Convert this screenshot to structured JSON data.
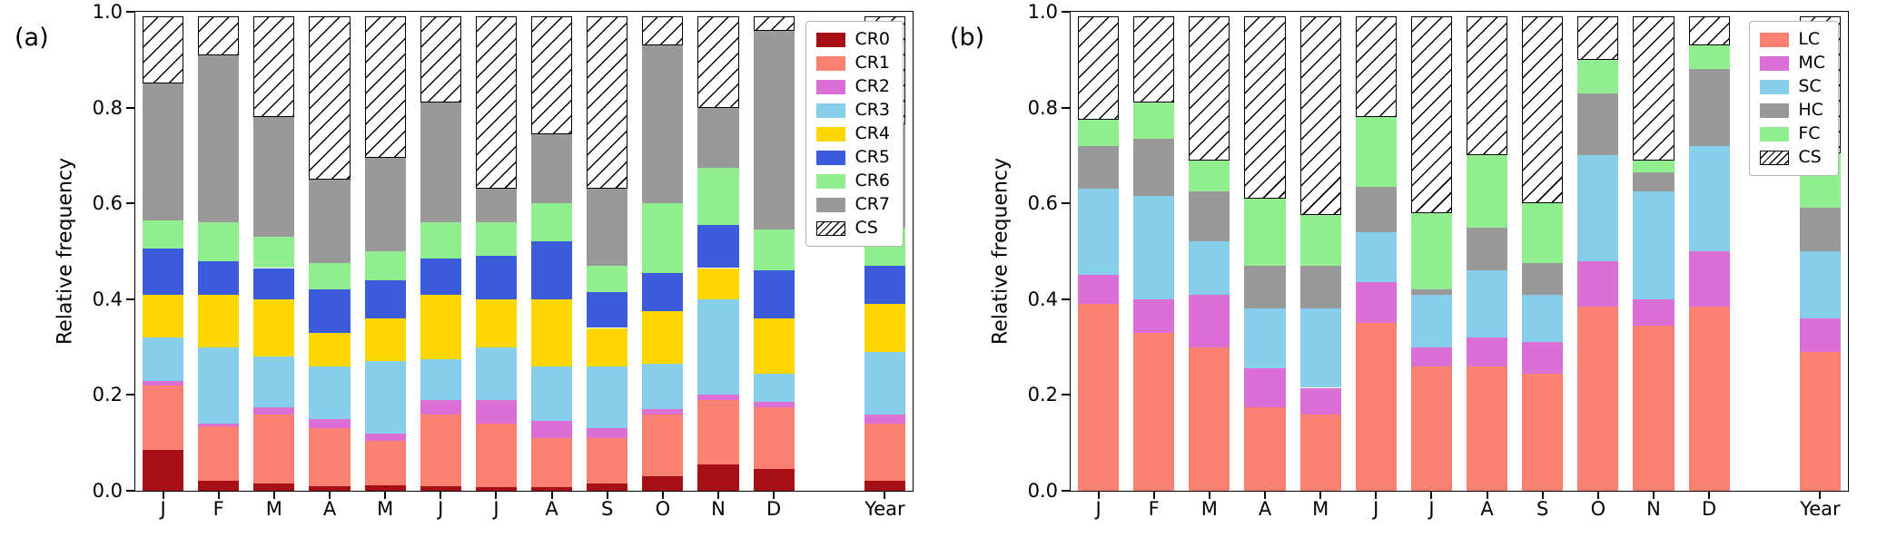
{
  "panels": [
    {
      "label": "(a)"
    },
    {
      "label": "(b)"
    }
  ],
  "chart_data": [
    {
      "type": "bar",
      "stacked": true,
      "title": "",
      "xlabel": "",
      "ylabel": "Relative frequency",
      "ylim": [
        0,
        1.0
      ],
      "yticks": [
        "0.0",
        "0.2",
        "0.4",
        "0.6",
        "0.8",
        "1.0"
      ],
      "grid": false,
      "legend_position": "upper right",
      "categories": [
        "J",
        "F",
        "M",
        "A",
        "M",
        "J",
        "J",
        "A",
        "S",
        "O",
        "N",
        "D",
        "Year"
      ],
      "positions": [
        0,
        1,
        2,
        3,
        4,
        5,
        6,
        7,
        8,
        9,
        10,
        11,
        13
      ],
      "series": [
        {
          "name": "CR0",
          "color": "#a50f15",
          "values": [
            0.085,
            0.02,
            0.015,
            0.01,
            0.012,
            0.01,
            0.008,
            0.008,
            0.015,
            0.03,
            0.055,
            0.045,
            0.02
          ]
        },
        {
          "name": "CR1",
          "color": "#fa8072",
          "values": [
            0.135,
            0.115,
            0.145,
            0.12,
            0.093,
            0.15,
            0.132,
            0.102,
            0.095,
            0.13,
            0.135,
            0.13,
            0.12
          ]
        },
        {
          "name": "CR2",
          "color": "#da70d6",
          "values": [
            0.01,
            0.005,
            0.015,
            0.02,
            0.015,
            0.03,
            0.05,
            0.035,
            0.02,
            0.01,
            0.01,
            0.01,
            0.02
          ]
        },
        {
          "name": "CR3",
          "color": "#87ceeb",
          "values": [
            0.09,
            0.16,
            0.105,
            0.11,
            0.15,
            0.085,
            0.11,
            0.115,
            0.13,
            0.095,
            0.2,
            0.06,
            0.13
          ]
        },
        {
          "name": "CR4",
          "color": "#ffd700",
          "values": [
            0.09,
            0.11,
            0.12,
            0.07,
            0.09,
            0.135,
            0.1,
            0.14,
            0.08,
            0.11,
            0.065,
            0.115,
            0.1
          ]
        },
        {
          "name": "CR5",
          "color": "#3b5bdb",
          "values": [
            0.095,
            0.07,
            0.065,
            0.09,
            0.08,
            0.075,
            0.09,
            0.12,
            0.075,
            0.08,
            0.09,
            0.1,
            0.08
          ]
        },
        {
          "name": "CR6",
          "color": "#90ee90",
          "values": [
            0.06,
            0.08,
            0.065,
            0.055,
            0.06,
            0.075,
            0.07,
            0.08,
            0.055,
            0.145,
            0.12,
            0.085,
            0.08
          ]
        },
        {
          "name": "CR7",
          "color": "#999999",
          "values": [
            0.285,
            0.35,
            0.25,
            0.175,
            0.195,
            0.25,
            0.07,
            0.145,
            0.16,
            0.33,
            0.125,
            0.415,
            0.215
          ]
        },
        {
          "name": "CS",
          "hatch": true,
          "color": "#ffffff",
          "values": [
            0.14,
            0.08,
            0.21,
            0.34,
            0.295,
            0.18,
            0.36,
            0.245,
            0.36,
            0.06,
            0.19,
            0.03,
            0.225
          ]
        }
      ]
    },
    {
      "type": "bar",
      "stacked": true,
      "title": "",
      "xlabel": "",
      "ylabel": "Relative frequency",
      "ylim": [
        0,
        1.0
      ],
      "yticks": [
        "0.0",
        "0.2",
        "0.4",
        "0.6",
        "0.8",
        "1.0"
      ],
      "grid": false,
      "legend_position": "upper right",
      "categories": [
        "J",
        "F",
        "M",
        "A",
        "M",
        "J",
        "J",
        "A",
        "S",
        "O",
        "N",
        "D",
        "Year"
      ],
      "positions": [
        0,
        1,
        2,
        3,
        4,
        5,
        6,
        7,
        8,
        9,
        10,
        11,
        13
      ],
      "series": [
        {
          "name": "LC",
          "color": "#fa8072",
          "values": [
            0.39,
            0.33,
            0.3,
            0.175,
            0.16,
            0.35,
            0.26,
            0.26,
            0.245,
            0.385,
            0.345,
            0.385,
            0.29
          ]
        },
        {
          "name": "MC",
          "color": "#da70d6",
          "values": [
            0.06,
            0.07,
            0.11,
            0.08,
            0.055,
            0.085,
            0.04,
            0.06,
            0.065,
            0.095,
            0.055,
            0.115,
            0.07
          ]
        },
        {
          "name": "SC",
          "color": "#87ceeb",
          "values": [
            0.18,
            0.215,
            0.11,
            0.125,
            0.165,
            0.105,
            0.11,
            0.14,
            0.1,
            0.22,
            0.225,
            0.22,
            0.14
          ]
        },
        {
          "name": "HC",
          "color": "#999999",
          "values": [
            0.09,
            0.12,
            0.105,
            0.09,
            0.09,
            0.095,
            0.01,
            0.09,
            0.065,
            0.13,
            0.04,
            0.16,
            0.09
          ]
        },
        {
          "name": "FC",
          "color": "#90ee90",
          "values": [
            0.055,
            0.075,
            0.065,
            0.14,
            0.105,
            0.145,
            0.16,
            0.15,
            0.125,
            0.07,
            0.025,
            0.05,
            0.115
          ]
        },
        {
          "name": "CS",
          "hatch": true,
          "color": "#ffffff",
          "values": [
            0.215,
            0.18,
            0.3,
            0.38,
            0.415,
            0.21,
            0.41,
            0.29,
            0.39,
            0.09,
            0.3,
            0.06,
            0.285
          ]
        }
      ]
    }
  ]
}
